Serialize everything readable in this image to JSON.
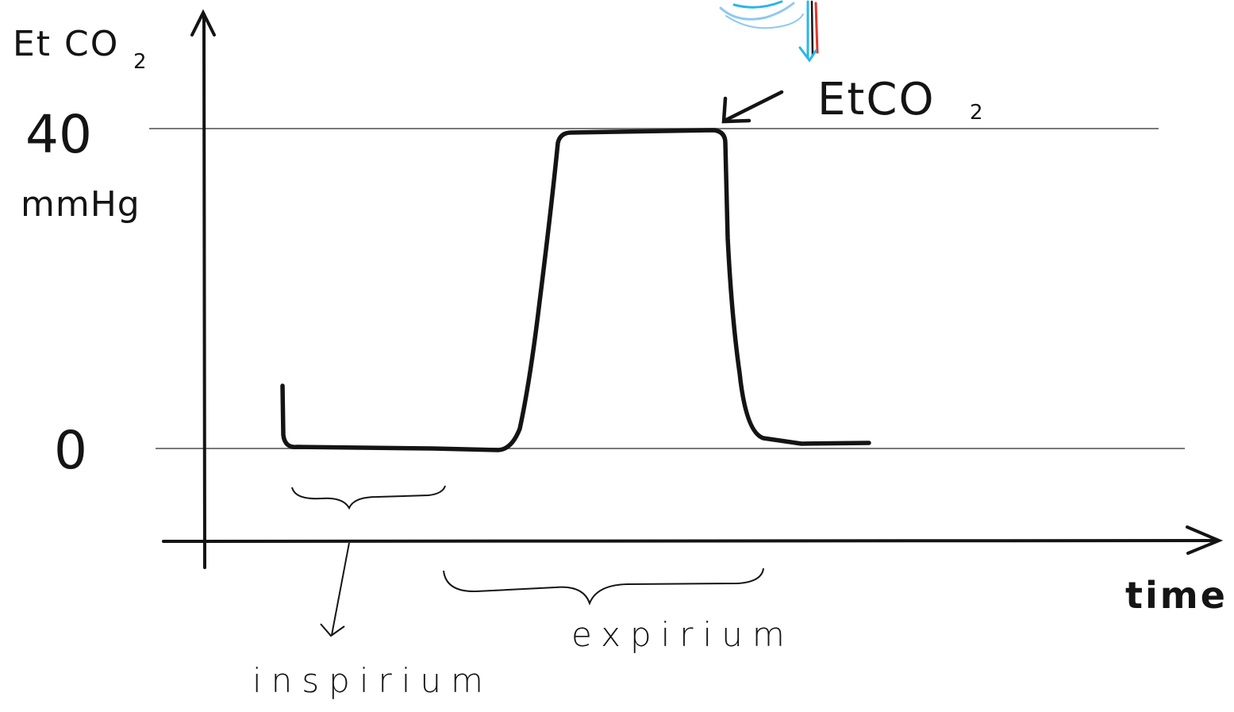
{
  "y_axis": {
    "title_main": "Et CO",
    "title_sub": "2",
    "tick_high_value": "40",
    "tick_high_unit": "mmHg",
    "tick_low_value": "0"
  },
  "x_axis": {
    "title": "time"
  },
  "annotation": {
    "main": "EtCO",
    "sub": "2"
  },
  "phases": {
    "inspiration": "inspirium",
    "expiration": "expirium"
  },
  "colors": {
    "ink": "#141414",
    "guide_line": "#7a7a7a",
    "figure_blue": "#29b6e8",
    "figure_light_blue": "#8ec9f0",
    "figure_red": "#e0352b"
  }
}
